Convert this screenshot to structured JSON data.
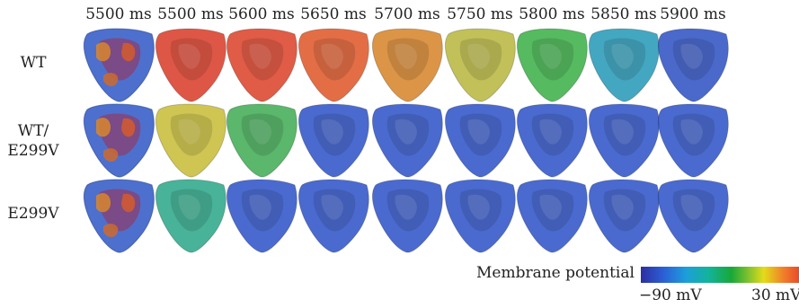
{
  "columns": [
    "5500 ms",
    "5500 ms",
    "5600 ms",
    "5650 ms",
    "5700 ms",
    "5750 ms",
    "5800 ms",
    "5850 ms",
    "5900 ms"
  ],
  "rows": [
    {
      "label_lines": [
        "WT"
      ]
    },
    {
      "label_lines": [
        "WT/",
        "E299V"
      ]
    },
    {
      "label_lines": [
        "E299V"
      ]
    }
  ],
  "heart_colors": [
    [
      "mixed",
      "#d9402c",
      "#dc452c",
      "#df5a2c",
      "#d7862e",
      "#b9b842",
      "#3fb04a",
      "#2a9bb8",
      "#3154c4"
    ],
    [
      "mixed",
      "#c8bd3a",
      "#43ad56",
      "#3155c8",
      "#3155c8",
      "#3155c8",
      "#3155c8",
      "#3155c8",
      "#3155c8"
    ],
    [
      "mixed",
      "#2fa88a",
      "#3155c8",
      "#3155c8",
      "#3155c8",
      "#3155c8",
      "#3155c8",
      "#3155c8",
      "#3155c8"
    ]
  ],
  "colorbar": {
    "title": "Membrane potential",
    "min_label": "−90 mV",
    "max_label": "30 mV",
    "colors": [
      "#2c2fa0",
      "#2c5fd6",
      "#1c9fd9",
      "#13b39b",
      "#18a838",
      "#7cc030",
      "#e3dc1a",
      "#f0802a",
      "#e6412a"
    ]
  }
}
